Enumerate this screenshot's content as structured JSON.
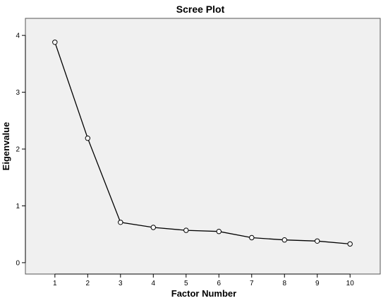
{
  "chart_data": {
    "type": "line",
    "title": "Scree Plot",
    "xlabel": "Factor Number",
    "ylabel": "Eigenvalue",
    "x": [
      1,
      2,
      3,
      4,
      5,
      6,
      7,
      8,
      9,
      10
    ],
    "series": [
      {
        "values": [
          3.88,
          2.19,
          0.71,
          0.62,
          0.57,
          0.55,
          0.44,
          0.4,
          0.38,
          0.33
        ]
      }
    ],
    "xticks": [
      "1",
      "2",
      "3",
      "4",
      "5",
      "6",
      "7",
      "8",
      "9",
      "10"
    ],
    "yticks": [
      "0",
      "1",
      "2",
      "3",
      "4"
    ],
    "xlim": [
      0.1,
      10.92
    ],
    "ylim": [
      -0.2,
      4.3
    ],
    "grid": false,
    "legend": "none",
    "colors": {
      "plot_background": "#f0f0f0",
      "line": "#000000",
      "marker_fill": "#ffffff"
    }
  }
}
